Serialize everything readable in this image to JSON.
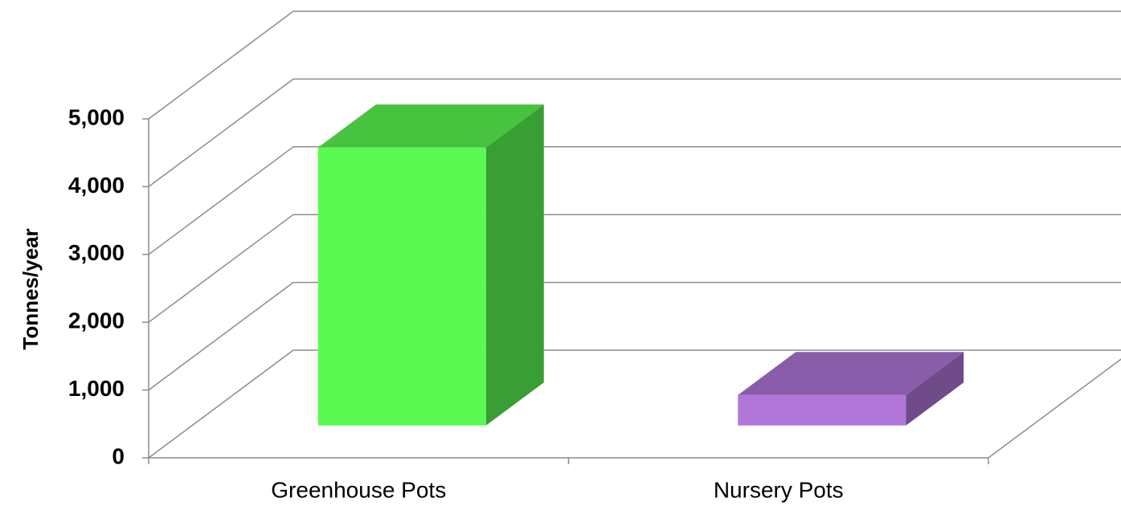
{
  "chart_data": {
    "type": "bar3d",
    "y_label": "Tonnes/year",
    "categories": [
      "Greenhouse Pots",
      "Nursery Pots"
    ],
    "values": [
      4100,
      450
    ],
    "colors": [
      "#5bfa52",
      "#b077d9"
    ],
    "ylim": [
      0,
      5000
    ],
    "yticks": [
      0,
      {
        "value": 1000,
        "label": "1,000"
      },
      {
        "value": 2000,
        "label": "2,000"
      },
      {
        "value": 3000,
        "label": "3,000"
      },
      {
        "value": 4000,
        "label": "4,000"
      },
      {
        "value": 5000,
        "label": "5,000"
      }
    ],
    "grid": true
  }
}
